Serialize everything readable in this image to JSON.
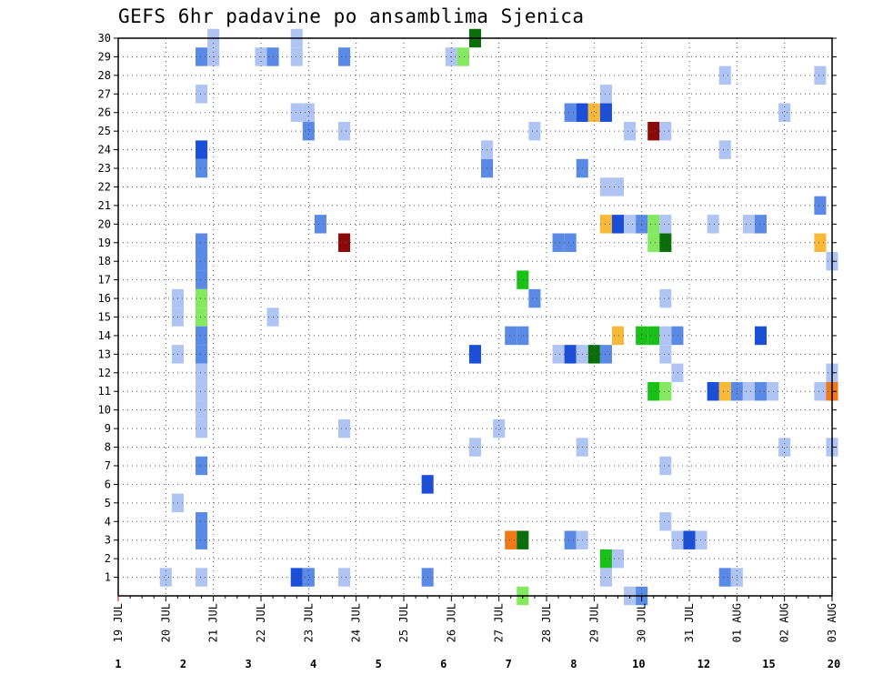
{
  "chart_data": {
    "type": "heatmap",
    "title": "GEFS 6hr padavine po ansamblima Sjenica",
    "xlabel": "",
    "ylabel": "",
    "x_ticks": [
      "19 JUL",
      "20 JUL",
      "21 JUL",
      "22 JUL",
      "23 JUL",
      "24 JUL",
      "25 JUL",
      "26 JUL",
      "27 JUL",
      "28 JUL",
      "29 JUL",
      "30 JUL",
      "31 JUL",
      "01 AUG",
      "02 AUG",
      "03 AUG"
    ],
    "y_ticks": [
      1,
      2,
      3,
      4,
      5,
      6,
      7,
      8,
      9,
      10,
      11,
      12,
      13,
      14,
      15,
      16,
      17,
      18,
      19,
      20,
      21,
      22,
      23,
      24,
      25,
      26,
      27,
      28,
      29,
      30
    ],
    "xlim": [
      0,
      15
    ],
    "ylim": [
      0,
      30
    ],
    "grid": true,
    "colorbar": {
      "labels": [
        "1",
        "2",
        "3",
        "4",
        "5",
        "6",
        "7",
        "8",
        "10",
        "12",
        "15",
        "20"
      ],
      "colors": [
        "#b0c4f4",
        "#5a8ae6",
        "#1c4fd8",
        "#84e860",
        "#18c018",
        "#0a6e0a",
        "#f8f800",
        "#f8b838",
        "#f07818",
        "#e02818",
        "#8a0a0a"
      ]
    },
    "cells": [
      {
        "x": 1.75,
        "y": 29,
        "c": 1
      },
      {
        "x": 2.0,
        "y": 29,
        "c": 0
      },
      {
        "x": 2.0,
        "y": 30,
        "c": 0
      },
      {
        "x": 3.0,
        "y": 29,
        "c": 0
      },
      {
        "x": 3.25,
        "y": 29,
        "c": 1
      },
      {
        "x": 3.75,
        "y": 29,
        "c": 0
      },
      {
        "x": 3.75,
        "y": 30,
        "c": 0
      },
      {
        "x": 4.75,
        "y": 29,
        "c": 1
      },
      {
        "x": 7.0,
        "y": 29,
        "c": 0
      },
      {
        "x": 7.25,
        "y": 29,
        "c": 3
      },
      {
        "x": 7.5,
        "y": 30,
        "c": 5
      },
      {
        "x": 1.75,
        "y": 27,
        "c": 0
      },
      {
        "x": 3.75,
        "y": 26,
        "c": 0
      },
      {
        "x": 4.0,
        "y": 26,
        "c": 0
      },
      {
        "x": 4.0,
        "y": 25,
        "c": 1
      },
      {
        "x": 4.75,
        "y": 25,
        "c": 0
      },
      {
        "x": 8.75,
        "y": 25,
        "c": 0
      },
      {
        "x": 9.5,
        "y": 26,
        "c": 1
      },
      {
        "x": 9.75,
        "y": 26,
        "c": 2
      },
      {
        "x": 10.0,
        "y": 26,
        "c": 7
      },
      {
        "x": 10.25,
        "y": 26,
        "c": 2
      },
      {
        "x": 10.25,
        "y": 27,
        "c": 0
      },
      {
        "x": 10.75,
        "y": 25,
        "c": 0
      },
      {
        "x": 11.25,
        "y": 25,
        "c": 10
      },
      {
        "x": 11.5,
        "y": 25,
        "c": 0
      },
      {
        "x": 12.75,
        "y": 28,
        "c": 0
      },
      {
        "x": 14.0,
        "y": 26,
        "c": 0
      },
      {
        "x": 14.75,
        "y": 28,
        "c": 0
      },
      {
        "x": 1.75,
        "y": 24,
        "c": 2
      },
      {
        "x": 1.75,
        "y": 23,
        "c": 1
      },
      {
        "x": 7.75,
        "y": 24,
        "c": 0
      },
      {
        "x": 7.75,
        "y": 23,
        "c": 1
      },
      {
        "x": 9.75,
        "y": 23,
        "c": 1
      },
      {
        "x": 12.75,
        "y": 24,
        "c": 0
      },
      {
        "x": 10.25,
        "y": 22,
        "c": 0
      },
      {
        "x": 10.5,
        "y": 22,
        "c": 0
      },
      {
        "x": 14.75,
        "y": 21,
        "c": 1
      },
      {
        "x": 4.25,
        "y": 20,
        "c": 1
      },
      {
        "x": 10.25,
        "y": 20,
        "c": 7
      },
      {
        "x": 10.5,
        "y": 20,
        "c": 2
      },
      {
        "x": 10.75,
        "y": 20,
        "c": 0
      },
      {
        "x": 11.0,
        "y": 20,
        "c": 1
      },
      {
        "x": 11.25,
        "y": 20,
        "c": 3
      },
      {
        "x": 11.5,
        "y": 20,
        "c": 0
      },
      {
        "x": 12.5,
        "y": 20,
        "c": 0
      },
      {
        "x": 13.25,
        "y": 20,
        "c": 0
      },
      {
        "x": 13.5,
        "y": 20,
        "c": 1
      },
      {
        "x": 1.75,
        "y": 19,
        "c": 1
      },
      {
        "x": 1.75,
        "y": 18,
        "c": 1
      },
      {
        "x": 1.75,
        "y": 17,
        "c": 1
      },
      {
        "x": 4.75,
        "y": 19,
        "c": 10
      },
      {
        "x": 9.25,
        "y": 19,
        "c": 1
      },
      {
        "x": 9.5,
        "y": 19,
        "c": 1
      },
      {
        "x": 11.25,
        "y": 19,
        "c": 3
      },
      {
        "x": 11.5,
        "y": 19,
        "c": 5
      },
      {
        "x": 14.75,
        "y": 19,
        "c": 7
      },
      {
        "x": 15.0,
        "y": 18,
        "c": 0
      },
      {
        "x": 1.25,
        "y": 16,
        "c": 0
      },
      {
        "x": 1.25,
        "y": 15,
        "c": 0
      },
      {
        "x": 1.75,
        "y": 16,
        "c": 3
      },
      {
        "x": 1.75,
        "y": 15,
        "c": 3
      },
      {
        "x": 1.75,
        "y": 14,
        "c": 1
      },
      {
        "x": 1.75,
        "y": 13,
        "c": 1
      },
      {
        "x": 3.25,
        "y": 15,
        "c": 0
      },
      {
        "x": 8.5,
        "y": 17,
        "c": 4
      },
      {
        "x": 8.75,
        "y": 16,
        "c": 1
      },
      {
        "x": 11.5,
        "y": 16,
        "c": 0
      },
      {
        "x": 8.25,
        "y": 14,
        "c": 1
      },
      {
        "x": 8.5,
        "y": 14,
        "c": 1
      },
      {
        "x": 10.5,
        "y": 14,
        "c": 7
      },
      {
        "x": 11.0,
        "y": 14,
        "c": 4
      },
      {
        "x": 11.25,
        "y": 14,
        "c": 4
      },
      {
        "x": 11.5,
        "y": 14,
        "c": 0
      },
      {
        "x": 11.75,
        "y": 14,
        "c": 1
      },
      {
        "x": 13.5,
        "y": 14,
        "c": 2
      },
      {
        "x": 1.25,
        "y": 13,
        "c": 0
      },
      {
        "x": 1.75,
        "y": 12,
        "c": 0
      },
      {
        "x": 7.5,
        "y": 13,
        "c": 2
      },
      {
        "x": 9.25,
        "y": 13,
        "c": 0
      },
      {
        "x": 9.5,
        "y": 13,
        "c": 2
      },
      {
        "x": 9.75,
        "y": 13,
        "c": 0
      },
      {
        "x": 10.0,
        "y": 13,
        "c": 5
      },
      {
        "x": 10.25,
        "y": 13,
        "c": 1
      },
      {
        "x": 11.5,
        "y": 13,
        "c": 0
      },
      {
        "x": 11.75,
        "y": 12,
        "c": 0
      },
      {
        "x": 15.0,
        "y": 12,
        "c": 0
      },
      {
        "x": 1.75,
        "y": 11,
        "c": 0
      },
      {
        "x": 1.75,
        "y": 10,
        "c": 0
      },
      {
        "x": 1.75,
        "y": 9,
        "c": 0
      },
      {
        "x": 4.75,
        "y": 9,
        "c": 0
      },
      {
        "x": 8.0,
        "y": 9,
        "c": 0
      },
      {
        "x": 11.25,
        "y": 11,
        "c": 4
      },
      {
        "x": 11.5,
        "y": 11,
        "c": 3
      },
      {
        "x": 12.5,
        "y": 11,
        "c": 2
      },
      {
        "x": 12.75,
        "y": 11,
        "c": 7
      },
      {
        "x": 13.0,
        "y": 11,
        "c": 1
      },
      {
        "x": 13.25,
        "y": 11,
        "c": 0
      },
      {
        "x": 13.5,
        "y": 11,
        "c": 1
      },
      {
        "x": 13.75,
        "y": 11,
        "c": 0
      },
      {
        "x": 14.75,
        "y": 11,
        "c": 0
      },
      {
        "x": 15.0,
        "y": 11,
        "c": 8
      },
      {
        "x": 7.5,
        "y": 8,
        "c": 0
      },
      {
        "x": 9.75,
        "y": 8,
        "c": 0
      },
      {
        "x": 14.0,
        "y": 8,
        "c": 0
      },
      {
        "x": 15.0,
        "y": 8,
        "c": 0
      },
      {
        "x": 1.75,
        "y": 7,
        "c": 1
      },
      {
        "x": 11.5,
        "y": 7,
        "c": 0
      },
      {
        "x": 6.5,
        "y": 6,
        "c": 2
      },
      {
        "x": 1.25,
        "y": 5,
        "c": 0
      },
      {
        "x": 1.75,
        "y": 4,
        "c": 1
      },
      {
        "x": 1.75,
        "y": 3,
        "c": 1
      },
      {
        "x": 8.25,
        "y": 3,
        "c": 8
      },
      {
        "x": 8.5,
        "y": 3,
        "c": 5
      },
      {
        "x": 9.5,
        "y": 3,
        "c": 1
      },
      {
        "x": 9.75,
        "y": 3,
        "c": 0
      },
      {
        "x": 11.5,
        "y": 4,
        "c": 0
      },
      {
        "x": 11.75,
        "y": 3,
        "c": 0
      },
      {
        "x": 12.0,
        "y": 3,
        "c": 2
      },
      {
        "x": 12.25,
        "y": 3,
        "c": 0
      },
      {
        "x": 10.25,
        "y": 2,
        "c": 4
      },
      {
        "x": 10.5,
        "y": 2,
        "c": 0
      },
      {
        "x": 1.0,
        "y": 1,
        "c": 0
      },
      {
        "x": 1.75,
        "y": 1,
        "c": 0
      },
      {
        "x": 3.75,
        "y": 1,
        "c": 2
      },
      {
        "x": 4.0,
        "y": 1,
        "c": 1
      },
      {
        "x": 4.75,
        "y": 1,
        "c": 0
      },
      {
        "x": 6.5,
        "y": 1,
        "c": 1
      },
      {
        "x": 10.25,
        "y": 1,
        "c": 0
      },
      {
        "x": 12.75,
        "y": 1,
        "c": 1
      },
      {
        "x": 13.0,
        "y": 1,
        "c": 0
      },
      {
        "x": 10.75,
        "y": 0,
        "c": 0
      },
      {
        "x": 11.0,
        "y": 0,
        "c": 1
      },
      {
        "x": 8.5,
        "y": 0,
        "c": 3
      }
    ]
  }
}
